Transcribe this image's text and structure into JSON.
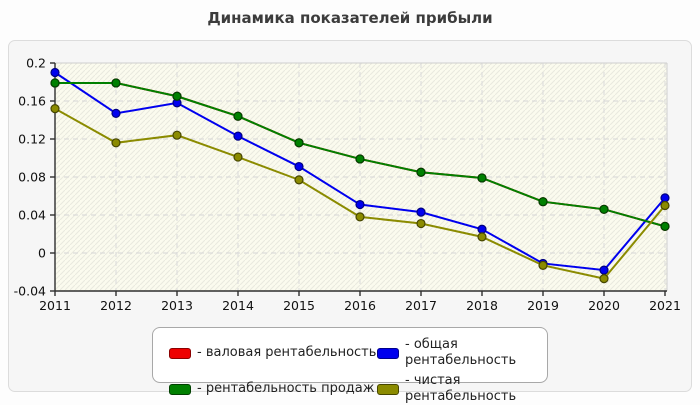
{
  "header": {
    "title": "Динамика показателей прибыли"
  },
  "chart_data": {
    "type": "line",
    "title": "Динамика показателей прибыли",
    "x": [
      2011,
      2012,
      2013,
      2014,
      2015,
      2016,
      2017,
      2018,
      2019,
      2020,
      2021
    ],
    "xlabel": "",
    "ylabel": "",
    "ylim": [
      -0.04,
      0.2
    ],
    "yticks": [
      0.2,
      0.16,
      0.12,
      0.08,
      0.04,
      0,
      -0.04
    ],
    "ytick_labels": [
      "0.2",
      "0.16",
      "0.12",
      "0.08",
      "0.04",
      "0",
      "-0.04"
    ],
    "grid": true,
    "legend_position": "bottom",
    "plot_bg": "#fbfbee",
    "series": [
      {
        "key": "gross",
        "name": "валовая рентабельность",
        "color": "#ee0000",
        "edge": "#7d0000",
        "values": [
          0.179,
          0.179,
          0.165,
          0.144,
          0.116,
          0.099,
          0.085,
          0.079,
          0.054,
          0.046,
          0.028
        ],
        "hidden_behind": "рентабельность продаж"
      },
      {
        "key": "total",
        "name": "общая рентабельность",
        "color": "#0000ee",
        "edge": "#000080",
        "values": [
          0.19,
          0.147,
          0.158,
          0.123,
          0.091,
          0.051,
          0.043,
          0.025,
          -0.011,
          -0.018,
          0.058
        ]
      },
      {
        "key": "sales",
        "name": "рентабельность продаж",
        "color": "#008000",
        "edge": "#004000",
        "values": [
          0.179,
          0.179,
          0.165,
          0.144,
          0.116,
          0.099,
          0.085,
          0.079,
          0.054,
          0.046,
          0.028
        ]
      },
      {
        "key": "net",
        "name": "чистая рентабельность",
        "color": "#8b8b00",
        "edge": "#464600",
        "values": [
          0.152,
          0.116,
          0.124,
          0.101,
          0.077,
          0.038,
          0.031,
          0.017,
          -0.013,
          -0.027,
          0.05
        ]
      }
    ]
  },
  "legend": {
    "items": [
      {
        "key": "gross",
        "label": "- валовая рентабельность",
        "swatch_color": "#ee0000",
        "swatch_edge": "#8b0000"
      },
      {
        "key": "total",
        "label": "- общая рентабельность",
        "swatch_color": "#0000ee",
        "swatch_edge": "#00008b"
      },
      {
        "key": "sales",
        "label": "- рентабельность продаж",
        "swatch_color": "#008000",
        "swatch_edge": "#004000"
      },
      {
        "key": "net",
        "label": "- чистая рентабельность",
        "swatch_color": "#8b8b00",
        "swatch_edge": "#464600"
      }
    ]
  }
}
